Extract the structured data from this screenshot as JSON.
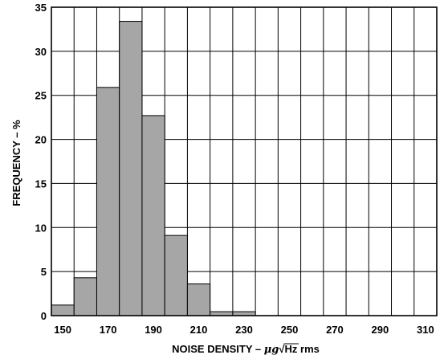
{
  "chart_data": {
    "type": "bar",
    "title": "",
    "xlabel": {
      "prefix": "NOISE DENSITY – ",
      "mu": "μ",
      "g": "g",
      "radical": "√",
      "hz": "Hz",
      "suffix": " rms"
    },
    "ylabel": "FREQUENCY – %",
    "xlim": [
      145,
      315
    ],
    "ylim": [
      0,
      35
    ],
    "grid": true,
    "x_ticks": [
      150,
      170,
      190,
      210,
      230,
      250,
      270,
      290,
      310
    ],
    "y_ticks": [
      0,
      5,
      10,
      15,
      20,
      25,
      30,
      35
    ],
    "bin_width": 10,
    "bins": [
      145,
      155,
      165,
      175,
      185,
      195,
      205,
      215,
      225,
      235,
      245,
      255,
      265,
      275,
      285,
      295,
      305
    ],
    "values": [
      1.2,
      4.3,
      25.9,
      33.4,
      22.7,
      9.1,
      3.6,
      0.45,
      0.45,
      0,
      0,
      0,
      0,
      0,
      0,
      0,
      0
    ],
    "colors": {
      "bar": "#a6a6a6",
      "edge": "#000000",
      "grid": "#000000",
      "background": "#ffffff"
    }
  }
}
